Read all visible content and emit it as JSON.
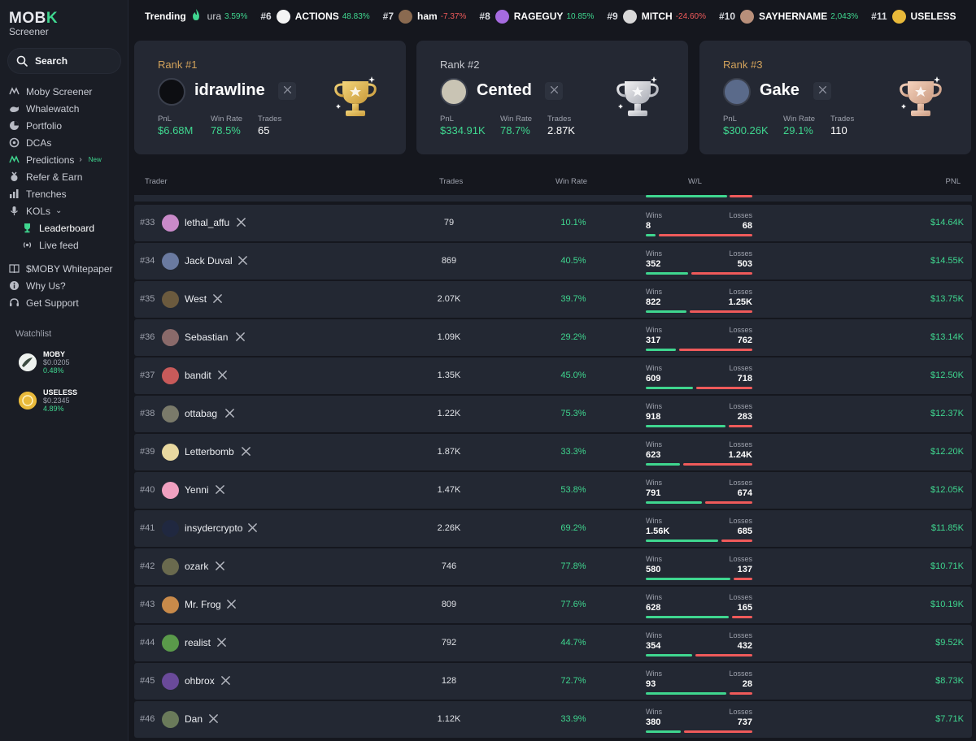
{
  "app": {
    "logo_text": "MOB",
    "logo_accent": "K",
    "logo_sub": "Screener"
  },
  "sidebar": {
    "search_label": "Search",
    "items": [
      {
        "label": "Moby Screener",
        "icon": "moby-icon"
      },
      {
        "label": "Whalewatch",
        "icon": "whale-icon"
      },
      {
        "label": "Portfolio",
        "icon": "pie-chart-icon"
      },
      {
        "label": "DCAs",
        "icon": "dca-icon"
      },
      {
        "label": "Predictions",
        "icon": "predictions-icon",
        "badge": "New"
      },
      {
        "label": "Refer & Earn",
        "icon": "medal-icon"
      },
      {
        "label": "Trenches",
        "icon": "bar-chart-icon"
      },
      {
        "label": "KOLs",
        "icon": "microphone-icon"
      },
      {
        "label": "Leaderboard",
        "icon": "trophy-icon"
      },
      {
        "label": "Live feed",
        "icon": "broadcast-icon"
      },
      {
        "label": "$MOBY Whitepaper",
        "icon": "book-icon"
      },
      {
        "label": "Why Us?",
        "icon": "info-icon"
      },
      {
        "label": "Get Support",
        "icon": "headset-icon"
      }
    ],
    "watchlist_title": "Watchlist",
    "watchlist": [
      {
        "name": "MOBY",
        "price": "$0.0205",
        "change": "0.48%"
      },
      {
        "name": "USELESS",
        "price": "$0.2345",
        "change": "4.89%"
      }
    ]
  },
  "trending": {
    "label": "Trending",
    "items": [
      {
        "rank": "",
        "name": "ura",
        "change": "3.59%",
        "dir": "pos",
        "icon_color": "#3a3d48"
      },
      {
        "rank": "#6",
        "name": "ACTIONS",
        "change": "48.83%",
        "dir": "pos",
        "icon_color": "#f4f4f4"
      },
      {
        "rank": "#7",
        "name": "ham",
        "change": "-7.37%",
        "dir": "neg",
        "icon_color": "#8a6a50"
      },
      {
        "rank": "#8",
        "name": "RAGEGUY",
        "change": "10.85%",
        "dir": "pos",
        "icon_color": "#a66be0"
      },
      {
        "rank": "#9",
        "name": "MITCH",
        "change": "-24.60%",
        "dir": "neg",
        "icon_color": "#d8d8d8"
      },
      {
        "rank": "#10",
        "name": "SAYHERNAME",
        "change": "2,043%",
        "dir": "pos",
        "icon_color": "#b88f7a"
      },
      {
        "rank": "#11",
        "name": "USELESS",
        "change": "",
        "dir": "pos",
        "icon_color": "#e8b93a"
      }
    ]
  },
  "top3": [
    {
      "rank_label": "Rank #1",
      "name": "idrawline",
      "pnl_label": "PnL",
      "pnl": "$6.68M",
      "winrate_label": "Win Rate",
      "winrate": "78.5%",
      "trades_label": "Trades",
      "trades": "65",
      "medal": "gold",
      "avatar_color": "#0d0e12"
    },
    {
      "rank_label": "Rank #2",
      "name": "Cented",
      "pnl_label": "PnL",
      "pnl": "$334.91K",
      "winrate_label": "Win Rate",
      "winrate": "78.7%",
      "trades_label": "Trades",
      "trades": "2.87K",
      "medal": "silver",
      "avatar_color": "#c9c4b4"
    },
    {
      "rank_label": "Rank #3",
      "name": "Gake",
      "pnl_label": "PnL",
      "pnl": "$300.26K",
      "winrate_label": "Win Rate",
      "winrate": "29.1%",
      "trades_label": "Trades",
      "trades": "110",
      "medal": "bronze",
      "avatar_color": "#5a6a8a"
    }
  ],
  "table": {
    "headers": {
      "trader": "Trader",
      "trades": "Trades",
      "winrate": "Win Rate",
      "wl": "W/L",
      "pnl": "PNL"
    },
    "wins_label": "Wins",
    "losses_label": "Losses",
    "rows": [
      {
        "rank": "#33",
        "name": "lethal_affu",
        "trades": "79",
        "winrate": "10.1%",
        "wins": "8",
        "losses": "68",
        "win_frac": 0.105,
        "pnl": "$14.64K",
        "avatar_color": "#c98ac9"
      },
      {
        "rank": "#34",
        "name": "Jack Duval",
        "trades": "869",
        "winrate": "40.5%",
        "wins": "352",
        "losses": "503",
        "win_frac": 0.41,
        "pnl": "$14.55K",
        "avatar_color": "#6a7aa0"
      },
      {
        "rank": "#35",
        "name": "West",
        "trades": "2.07K",
        "winrate": "39.7%",
        "wins": "822",
        "losses": "1.25K",
        "win_frac": 0.397,
        "pnl": "$13.75K",
        "avatar_color": "#6b5a3e"
      },
      {
        "rank": "#36",
        "name": "Sebastian",
        "trades": "1.09K",
        "winrate": "29.2%",
        "wins": "317",
        "losses": "762",
        "win_frac": 0.294,
        "pnl": "$13.14K",
        "avatar_color": "#8a6a6a"
      },
      {
        "rank": "#37",
        "name": "bandit",
        "trades": "1.35K",
        "winrate": "45.0%",
        "wins": "609",
        "losses": "718",
        "win_frac": 0.459,
        "pnl": "$12.50K",
        "avatar_color": "#c85a5a"
      },
      {
        "rank": "#38",
        "name": "ottabag",
        "trades": "1.22K",
        "winrate": "75.3%",
        "wins": "918",
        "losses": "283",
        "win_frac": 0.764,
        "pnl": "$12.37K",
        "avatar_color": "#7a7a6a"
      },
      {
        "rank": "#39",
        "name": "Letterbomb",
        "trades": "1.87K",
        "winrate": "33.3%",
        "wins": "623",
        "losses": "1.24K",
        "win_frac": 0.334,
        "pnl": "$12.20K",
        "avatar_color": "#e8d8a0"
      },
      {
        "rank": "#40",
        "name": "Yenni",
        "trades": "1.47K",
        "winrate": "53.8%",
        "wins": "791",
        "losses": "674",
        "win_frac": 0.54,
        "pnl": "$12.05K",
        "avatar_color": "#f0a0c0"
      },
      {
        "rank": "#41",
        "name": "insydercrypto",
        "trades": "2.26K",
        "winrate": "69.2%",
        "wins": "1.56K",
        "losses": "685",
        "win_frac": 0.695,
        "pnl": "$11.85K",
        "avatar_color": "#202840"
      },
      {
        "rank": "#42",
        "name": "ozark",
        "trades": "746",
        "winrate": "77.8%",
        "wins": "580",
        "losses": "137",
        "win_frac": 0.809,
        "pnl": "$10.71K",
        "avatar_color": "#6a6a4e"
      },
      {
        "rank": "#43",
        "name": "Mr. Frog",
        "trades": "809",
        "winrate": "77.6%",
        "wins": "628",
        "losses": "165",
        "win_frac": 0.792,
        "pnl": "$10.19K",
        "avatar_color": "#c88a4a"
      },
      {
        "rank": "#44",
        "name": "realist",
        "trades": "792",
        "winrate": "44.7%",
        "wins": "354",
        "losses": "432",
        "win_frac": 0.45,
        "pnl": "$9.52K",
        "avatar_color": "#5a9a4a"
      },
      {
        "rank": "#45",
        "name": "ohbrox",
        "trades": "128",
        "winrate": "72.7%",
        "wins": "93",
        "losses": "28",
        "win_frac": 0.769,
        "pnl": "$8.73K",
        "avatar_color": "#6a4a9a"
      },
      {
        "rank": "#46",
        "name": "Dan",
        "trades": "1.12K",
        "winrate": "33.9%",
        "wins": "380",
        "losses": "737",
        "win_frac": 0.34,
        "pnl": "$7.71K",
        "avatar_color": "#6a7a5a"
      }
    ]
  },
  "colors": {
    "accent_green": "#3fd68f",
    "loss_red": "#ef5a5a",
    "gold": "#d2a25b",
    "bg": "#15171e",
    "card": "#242833"
  }
}
